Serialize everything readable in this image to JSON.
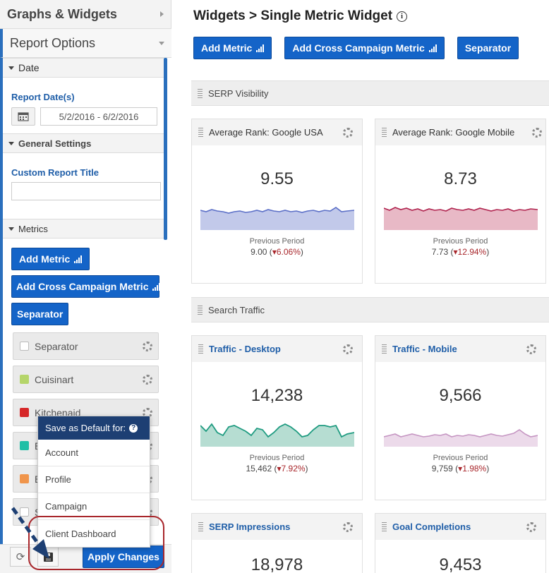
{
  "sidebar": {
    "graphs_title": "Graphs & Widgets",
    "report_options_title": "Report Options",
    "date_section": "Date",
    "report_dates_label": "Report Date(s)",
    "date_range": "5/2/2016 - 6/2/2016",
    "general_section": "General Settings",
    "custom_title_label": "Custom Report Title",
    "custom_title_value": "",
    "metrics_section": "Metrics",
    "add_metric": "Add Metric",
    "add_cross": "Add Cross Campaign Metric",
    "separator_btn": "Separator",
    "metric_items": [
      {
        "name": "Separator",
        "color": "#ffffff"
      },
      {
        "name": "Cuisinart",
        "color": "#b5d56a"
      },
      {
        "name": "Kitchenaid",
        "color": "#d62728"
      },
      {
        "name": "E",
        "color": "#1fbfa6"
      },
      {
        "name": "B",
        "color": "#f0954b"
      },
      {
        "name": "S",
        "color": "#ffffff"
      }
    ]
  },
  "save_menu": {
    "title": "Save as Default for:",
    "help_icon": "?",
    "items": [
      "Account",
      "Profile",
      "Campaign",
      "Client Dashboard"
    ]
  },
  "bottom": {
    "refresh_icon": "⟳",
    "apply": "Apply Changes"
  },
  "main": {
    "title": "Widgets > Single Metric Widget",
    "info_icon": "i",
    "add_metric": "Add Metric",
    "add_cross": "Add Cross Campaign Metric",
    "separator": "Separator",
    "serp_visibility": "SERP Visibility",
    "search_traffic": "Search Traffic",
    "prev_label": "Previous Period",
    "widgets": [
      {
        "title": "Average Rank: Google USA",
        "value": "9.55",
        "prev": "9.00",
        "change": "6.06%",
        "color": "#5b6fc7",
        "fill": "#c2c9ea"
      },
      {
        "title": "Average Rank: Google Mobile",
        "value": "8.73",
        "prev": "7.73",
        "change": "12.94%",
        "color": "#b0244f",
        "fill": "#e8b9c6"
      },
      {
        "title": "Traffic - Desktop",
        "value": "14,238",
        "prev": "15,462",
        "change": "7.92%",
        "color": "#1e9b80",
        "fill": "#b6ddd2"
      },
      {
        "title": "Traffic - Mobile",
        "value": "9,566",
        "prev": "9,759",
        "change": "1.98%",
        "color": "#c595c2",
        "fill": "#ecdaea"
      },
      {
        "title": "SERP Impressions",
        "value": "18,978"
      },
      {
        "title": "Goal Completions",
        "value": "9,453"
      }
    ]
  }
}
